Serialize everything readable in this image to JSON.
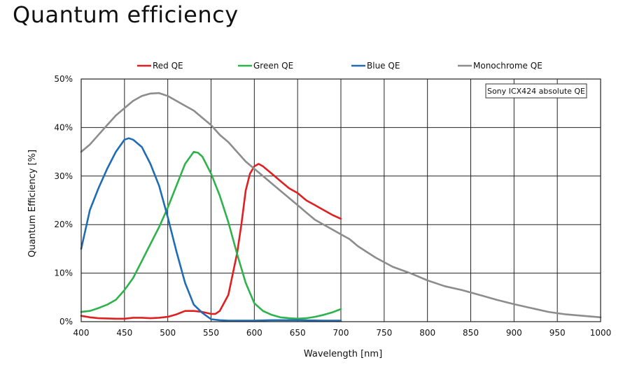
{
  "page": {
    "title": "Quantum efficiency"
  },
  "chart_data": {
    "type": "line",
    "title": "",
    "xlabel": "Wavelength [nm]",
    "ylabel": "Quantum Efficiency [%]",
    "xlim": [
      400,
      1000
    ],
    "ylim": [
      0,
      50
    ],
    "x_ticks": [
      400,
      450,
      500,
      550,
      600,
      650,
      700,
      750,
      800,
      850,
      900,
      950,
      1000
    ],
    "y_ticks": [
      0,
      10,
      20,
      30,
      40,
      50
    ],
    "y_tick_labels": [
      "0%",
      "10%",
      "20%",
      "30%",
      "40%",
      "50%"
    ],
    "grid": true,
    "legend_position": "top",
    "annotation": "Sony ICX424 absolute QE",
    "series": [
      {
        "name": "Red QE",
        "color": "#e02020",
        "x": [
          400,
          410,
          420,
          440,
          450,
          460,
          470,
          480,
          490,
          500,
          510,
          520,
          530,
          540,
          550,
          555,
          560,
          570,
          580,
          585,
          590,
          595,
          600,
          605,
          610,
          620,
          630,
          640,
          650,
          660,
          670,
          680,
          690,
          700
        ],
        "y": [
          1.2,
          0.9,
          0.7,
          0.6,
          0.6,
          0.8,
          0.8,
          0.7,
          0.8,
          1.0,
          1.5,
          2.2,
          2.2,
          2.0,
          1.6,
          1.6,
          2.2,
          5.5,
          14,
          20,
          27,
          30.5,
          32,
          32.5,
          32,
          30.5,
          29,
          27.5,
          26.5,
          25,
          24,
          23,
          22,
          21.2
        ]
      },
      {
        "name": "Green QE",
        "color": "#2eb24b",
        "x": [
          400,
          410,
          420,
          430,
          440,
          450,
          460,
          470,
          480,
          490,
          500,
          510,
          520,
          530,
          535,
          540,
          550,
          560,
          570,
          580,
          590,
          600,
          610,
          620,
          630,
          640,
          650,
          660,
          670,
          680,
          690,
          700
        ],
        "y": [
          2,
          2.2,
          2.8,
          3.5,
          4.5,
          6.5,
          9,
          12.5,
          16,
          19.5,
          23.5,
          28,
          32.5,
          35,
          34.8,
          34,
          30.5,
          26,
          20.5,
          14,
          8,
          3.8,
          2.2,
          1.4,
          0.9,
          0.7,
          0.6,
          0.7,
          1.0,
          1.4,
          1.9,
          2.6
        ]
      },
      {
        "name": "Blue QE",
        "color": "#1f6cb5",
        "x": [
          400,
          405,
          410,
          420,
          430,
          440,
          450,
          455,
          460,
          470,
          480,
          490,
          500,
          510,
          520,
          530,
          540,
          550,
          560,
          570,
          580,
          600,
          620,
          650,
          680,
          700
        ],
        "y": [
          15,
          19,
          23,
          27.5,
          31.5,
          35,
          37.5,
          37.8,
          37.5,
          36,
          32.5,
          28,
          21.5,
          14.5,
          8,
          3.5,
          1.8,
          0.5,
          0.3,
          0.2,
          0.2,
          0.2,
          0.3,
          0.3,
          0.2,
          0.2
        ]
      },
      {
        "name": "Monochrome QE",
        "color": "#8c8c8c",
        "x": [
          400,
          410,
          420,
          430,
          440,
          450,
          460,
          470,
          480,
          490,
          500,
          510,
          520,
          530,
          540,
          550,
          560,
          570,
          580,
          590,
          600,
          610,
          620,
          630,
          640,
          650,
          660,
          670,
          680,
          690,
          700,
          710,
          720,
          740,
          760,
          780,
          800,
          820,
          840,
          860,
          880,
          900,
          920,
          940,
          960,
          980,
          1000
        ],
        "y": [
          35,
          36.5,
          38.5,
          40.5,
          42.5,
          44,
          45.5,
          46.5,
          47,
          47.1,
          46.5,
          45.5,
          44.5,
          43.5,
          42,
          40.5,
          38.5,
          37,
          35,
          33,
          31.5,
          30,
          28.5,
          27,
          25.5,
          24,
          22.5,
          21,
          20,
          19,
          18,
          17,
          15.5,
          13.2,
          11.3,
          10,
          8.5,
          7.3,
          6.5,
          5.5,
          4.5,
          3.6,
          2.8,
          2,
          1.5,
          1.2,
          0.9
        ]
      }
    ]
  }
}
